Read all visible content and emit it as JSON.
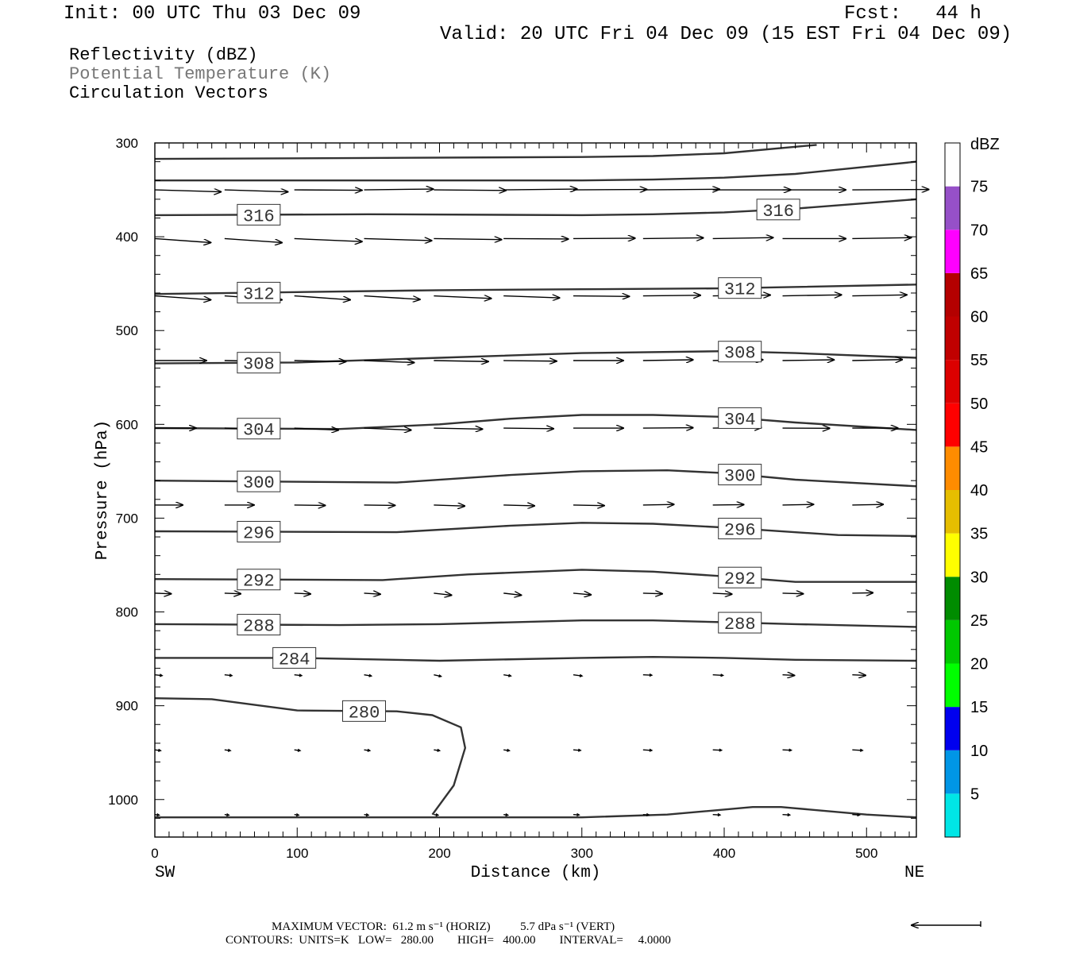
{
  "header": {
    "init": "Init: 00 UTC Thu 03 Dec 09",
    "fcst": "Fcst:   44 h",
    "valid": "Valid: 20 UTC Fri 04 Dec 09 (15 EST Fri 04 Dec 09)"
  },
  "fields": [
    {
      "label": "Reflectivity (dBZ)",
      "color": "#000000"
    },
    {
      "label": "Potential Temperature (K)",
      "color": "#777777"
    },
    {
      "label": "Circulation Vectors",
      "color": "#000000"
    }
  ],
  "chart_data": {
    "type": "cross-section",
    "xlabel": "Distance (km)",
    "ylabel": "Pressure (hPa)",
    "xlim": [
      0,
      535
    ],
    "ylim": [
      1040,
      300
    ],
    "y_scale": "linear-inverted",
    "x_ticks": [
      "0",
      "100",
      "200",
      "300",
      "400",
      "500"
    ],
    "y_ticks": [
      "300",
      "400",
      "500",
      "600",
      "700",
      "800",
      "900",
      "1000"
    ],
    "left_end_label": "SW",
    "right_end_label": "NE",
    "theta_contours": [
      {
        "level": "",
        "pts": [
          [
            0,
            317
          ],
          [
            150,
            316
          ],
          [
            300,
            315
          ],
          [
            350,
            314
          ],
          [
            400,
            311
          ],
          [
            465,
            302
          ]
        ]
      },
      {
        "level": "",
        "pts": [
          [
            0,
            340
          ],
          [
            150,
            340
          ],
          [
            300,
            340
          ],
          [
            350,
            339
          ],
          [
            400,
            337
          ],
          [
            450,
            333
          ],
          [
            535,
            320
          ]
        ]
      },
      {
        "level": "316",
        "pts": [
          [
            0,
            377
          ],
          [
            150,
            376
          ],
          [
            300,
            377
          ],
          [
            350,
            376
          ],
          [
            400,
            374
          ],
          [
            450,
            370
          ],
          [
            535,
            360
          ]
        ]
      },
      {
        "level": "312",
        "pts": [
          [
            0,
            461
          ],
          [
            100,
            459
          ],
          [
            200,
            457
          ],
          [
            300,
            456
          ],
          [
            400,
            455
          ],
          [
            535,
            451
          ]
        ]
      },
      {
        "level": "308",
        "pts": [
          [
            0,
            535
          ],
          [
            100,
            534
          ],
          [
            200,
            529
          ],
          [
            300,
            524
          ],
          [
            400,
            522
          ],
          [
            450,
            524
          ],
          [
            535,
            529
          ]
        ]
      },
      {
        "level": "304",
        "pts": [
          [
            0,
            604
          ],
          [
            130,
            605
          ],
          [
            200,
            600
          ],
          [
            250,
            594
          ],
          [
            300,
            590
          ],
          [
            350,
            590
          ],
          [
            400,
            592
          ],
          [
            450,
            598
          ],
          [
            535,
            606
          ]
        ]
      },
      {
        "level": "300",
        "pts": [
          [
            0,
            660
          ],
          [
            170,
            662
          ],
          [
            250,
            654
          ],
          [
            300,
            650
          ],
          [
            360,
            649
          ],
          [
            400,
            652
          ],
          [
            450,
            659
          ],
          [
            535,
            666
          ]
        ]
      },
      {
        "level": "296",
        "pts": [
          [
            0,
            714
          ],
          [
            170,
            715
          ],
          [
            250,
            708
          ],
          [
            300,
            705
          ],
          [
            350,
            706
          ],
          [
            400,
            710
          ],
          [
            480,
            718
          ],
          [
            535,
            719
          ]
        ]
      },
      {
        "level": "292",
        "pts": [
          [
            0,
            765
          ],
          [
            160,
            766
          ],
          [
            220,
            760
          ],
          [
            300,
            755
          ],
          [
            350,
            757
          ],
          [
            400,
            762
          ],
          [
            450,
            768
          ],
          [
            535,
            768
          ]
        ]
      },
      {
        "level": "288",
        "pts": [
          [
            0,
            813
          ],
          [
            130,
            814
          ],
          [
            200,
            813
          ],
          [
            300,
            809
          ],
          [
            350,
            809
          ],
          [
            400,
            811
          ],
          [
            450,
            813
          ],
          [
            535,
            816
          ]
        ]
      },
      {
        "level": "284",
        "pts": [
          [
            0,
            849
          ],
          [
            100,
            849
          ],
          [
            200,
            852
          ],
          [
            300,
            849
          ],
          [
            350,
            848
          ],
          [
            400,
            849
          ],
          [
            450,
            851
          ],
          [
            535,
            852
          ]
        ]
      },
      {
        "level": "280",
        "pts": [
          [
            0,
            892
          ],
          [
            40,
            893
          ],
          [
            100,
            905
          ],
          [
            170,
            906
          ],
          [
            195,
            910
          ],
          [
            215,
            923
          ],
          [
            218,
            945
          ],
          [
            210,
            985
          ],
          [
            195,
            1016
          ]
        ]
      },
      {
        "level": "",
        "pts": [
          [
            0,
            1019
          ],
          [
            200,
            1019
          ],
          [
            300,
            1019
          ],
          [
            360,
            1016
          ],
          [
            420,
            1008
          ],
          [
            440,
            1008
          ],
          [
            500,
            1016
          ],
          [
            535,
            1019
          ]
        ]
      }
    ],
    "vector_levels_hPa": [
      350,
      402,
      463,
      532,
      604,
      686,
      780,
      867,
      947,
      1016
    ],
    "vector_x_km": [
      0,
      49,
      98,
      147,
      196,
      245,
      294,
      343,
      392,
      441,
      490
    ],
    "vectors_u": [
      [
        45,
        43,
        46,
        47,
        49,
        50,
        50,
        52,
        53,
        43,
        52
      ],
      [
        38,
        39,
        46,
        46,
        46,
        44,
        42,
        41,
        41,
        43,
        40
      ],
      [
        38,
        39,
        38,
        38,
        39,
        38,
        38,
        39,
        39,
        40,
        37
      ],
      [
        35,
        35,
        35,
        34,
        37,
        36,
        34,
        34,
        34,
        35,
        34
      ],
      [
        28,
        28,
        30,
        32,
        33,
        34,
        34,
        34,
        33,
        32,
        31
      ],
      [
        19,
        20,
        21,
        21,
        21,
        21,
        21,
        21,
        21,
        21,
        21
      ],
      [
        11,
        11,
        11,
        11,
        12,
        12,
        12,
        13,
        13,
        14,
        14
      ],
      [
        5,
        5,
        5,
        5,
        5,
        5,
        6,
        6,
        7,
        8,
        9
      ],
      [
        4,
        4,
        4,
        4,
        4,
        4,
        5,
        6,
        6,
        6,
        7
      ],
      [
        3,
        3,
        3,
        3,
        3,
        3,
        4,
        4,
        5,
        5,
        5
      ]
    ],
    "vectors_w": [
      [
        -1.0,
        -1.0,
        -0.2,
        0.4,
        -0.3,
        0.4,
        0.2,
        0.3,
        0.0,
        0.0,
        0.2
      ],
      [
        -2.0,
        -2.0,
        -1.5,
        -1.0,
        -0.5,
        -0.2,
        0.2,
        0.4,
        0.5,
        0.0,
        0.5
      ],
      [
        -2.0,
        -2.0,
        -2.0,
        -1.8,
        -1.3,
        -1.0,
        -0.3,
        0.3,
        0.4,
        0.5,
        0.5
      ],
      [
        0.0,
        -0.5,
        -0.5,
        -1.0,
        -0.5,
        -0.3,
        0.0,
        0.4,
        0.4,
        0.4,
        0.5
      ],
      [
        0.0,
        -1.0,
        -1.0,
        -1.0,
        -0.5,
        -0.3,
        0.0,
        0.2,
        0.3,
        -0.1,
        0.0
      ],
      [
        0.0,
        0.0,
        -0.2,
        -0.2,
        -0.5,
        -0.4,
        -0.3,
        0.3,
        0.2,
        0.3,
        0.3
      ],
      [
        -0.3,
        -0.3,
        -0.4,
        -0.5,
        -1.0,
        -1.0,
        -0.8,
        -0.3,
        -0.5,
        -0.3,
        0.2
      ],
      [
        -0.4,
        -0.4,
        -0.4,
        -0.6,
        -0.8,
        -0.6,
        -0.6,
        -0.2,
        -0.3,
        -0.3,
        -0.3
      ],
      [
        -0.4,
        -0.4,
        -0.4,
        -0.4,
        -0.4,
        -0.4,
        -0.3,
        -0.3,
        -0.2,
        -0.2,
        -0.3
      ],
      [
        -0.3,
        -0.3,
        -0.3,
        -0.3,
        -0.3,
        -0.3,
        -0.2,
        -0.2,
        -0.2,
        -0.2,
        -0.2
      ]
    ],
    "colorbar": {
      "unit": "dBZ",
      "bins": [
        {
          "label": "5",
          "color": "#00e6e6"
        },
        {
          "label": "10",
          "color": "#0096e6"
        },
        {
          "label": "15",
          "color": "#0000ee"
        },
        {
          "label": "20",
          "color": "#00ff00"
        },
        {
          "label": "25",
          "color": "#00c800"
        },
        {
          "label": "30",
          "color": "#008c00"
        },
        {
          "label": "35",
          "color": "#ffff00"
        },
        {
          "label": "40",
          "color": "#e6be00"
        },
        {
          "label": "45",
          "color": "#ff8c00"
        },
        {
          "label": "50",
          "color": "#ff0000"
        },
        {
          "label": "55",
          "color": "#dc0000"
        },
        {
          "label": "60",
          "color": "#c00000"
        },
        {
          "label": "65",
          "color": "#b40000"
        },
        {
          "label": "70",
          "color": "#ff00ff"
        },
        {
          "label": "75",
          "color": "#9650c8"
        },
        {
          "label": "",
          "color": "#ffffff"
        }
      ]
    }
  },
  "footer": {
    "max_vector": "MAXIMUM VECTOR:  61.2 m s⁻¹ (HORIZ)          5.7 dPa s⁻¹ (VERT)",
    "contours": "CONTOURS:  UNITS=K   LOW=   280.00        HIGH=   400.00        INTERVAL=     4.0000"
  }
}
